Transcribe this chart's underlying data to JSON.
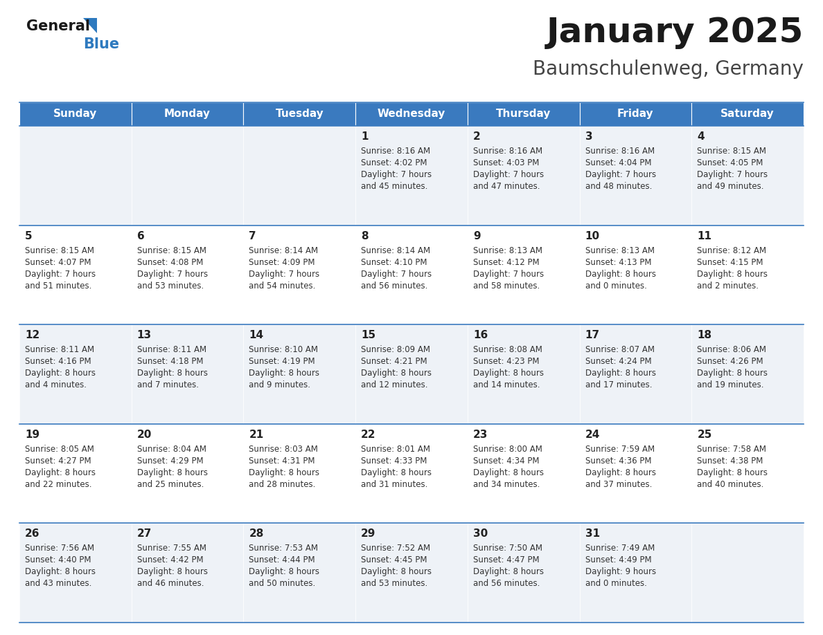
{
  "title": "January 2025",
  "subtitle": "Baumschulenweg, Germany",
  "days_of_week": [
    "Sunday",
    "Monday",
    "Tuesday",
    "Wednesday",
    "Thursday",
    "Friday",
    "Saturday"
  ],
  "header_bg": "#3a7abf",
  "header_text": "#ffffff",
  "row_bg_odd": "#eef2f7",
  "row_bg_even": "#ffffff",
  "cell_border_color": "#3a7abf",
  "title_color": "#1a1a1a",
  "subtitle_color": "#444444",
  "day_number_color": "#222222",
  "cell_text_color": "#333333",
  "logo_general_color": "#1a1a1a",
  "logo_blue_color": "#2e7abf",
  "logo_triangle_color": "#2e7abf",
  "calendar_data": [
    [
      null,
      null,
      null,
      {
        "day": 1,
        "sunrise": "8:16 AM",
        "sunset": "4:02 PM",
        "daylight": "7 hours and 45 minutes."
      },
      {
        "day": 2,
        "sunrise": "8:16 AM",
        "sunset": "4:03 PM",
        "daylight": "7 hours and 47 minutes."
      },
      {
        "day": 3,
        "sunrise": "8:16 AM",
        "sunset": "4:04 PM",
        "daylight": "7 hours and 48 minutes."
      },
      {
        "day": 4,
        "sunrise": "8:15 AM",
        "sunset": "4:05 PM",
        "daylight": "7 hours and 49 minutes."
      }
    ],
    [
      {
        "day": 5,
        "sunrise": "8:15 AM",
        "sunset": "4:07 PM",
        "daylight": "7 hours and 51 minutes."
      },
      {
        "day": 6,
        "sunrise": "8:15 AM",
        "sunset": "4:08 PM",
        "daylight": "7 hours and 53 minutes."
      },
      {
        "day": 7,
        "sunrise": "8:14 AM",
        "sunset": "4:09 PM",
        "daylight": "7 hours and 54 minutes."
      },
      {
        "day": 8,
        "sunrise": "8:14 AM",
        "sunset": "4:10 PM",
        "daylight": "7 hours and 56 minutes."
      },
      {
        "day": 9,
        "sunrise": "8:13 AM",
        "sunset": "4:12 PM",
        "daylight": "7 hours and 58 minutes."
      },
      {
        "day": 10,
        "sunrise": "8:13 AM",
        "sunset": "4:13 PM",
        "daylight": "8 hours and 0 minutes."
      },
      {
        "day": 11,
        "sunrise": "8:12 AM",
        "sunset": "4:15 PM",
        "daylight": "8 hours and 2 minutes."
      }
    ],
    [
      {
        "day": 12,
        "sunrise": "8:11 AM",
        "sunset": "4:16 PM",
        "daylight": "8 hours and 4 minutes."
      },
      {
        "day": 13,
        "sunrise": "8:11 AM",
        "sunset": "4:18 PM",
        "daylight": "8 hours and 7 minutes."
      },
      {
        "day": 14,
        "sunrise": "8:10 AM",
        "sunset": "4:19 PM",
        "daylight": "8 hours and 9 minutes."
      },
      {
        "day": 15,
        "sunrise": "8:09 AM",
        "sunset": "4:21 PM",
        "daylight": "8 hours and 12 minutes."
      },
      {
        "day": 16,
        "sunrise": "8:08 AM",
        "sunset": "4:23 PM",
        "daylight": "8 hours and 14 minutes."
      },
      {
        "day": 17,
        "sunrise": "8:07 AM",
        "sunset": "4:24 PM",
        "daylight": "8 hours and 17 minutes."
      },
      {
        "day": 18,
        "sunrise": "8:06 AM",
        "sunset": "4:26 PM",
        "daylight": "8 hours and 19 minutes."
      }
    ],
    [
      {
        "day": 19,
        "sunrise": "8:05 AM",
        "sunset": "4:27 PM",
        "daylight": "8 hours and 22 minutes."
      },
      {
        "day": 20,
        "sunrise": "8:04 AM",
        "sunset": "4:29 PM",
        "daylight": "8 hours and 25 minutes."
      },
      {
        "day": 21,
        "sunrise": "8:03 AM",
        "sunset": "4:31 PM",
        "daylight": "8 hours and 28 minutes."
      },
      {
        "day": 22,
        "sunrise": "8:01 AM",
        "sunset": "4:33 PM",
        "daylight": "8 hours and 31 minutes."
      },
      {
        "day": 23,
        "sunrise": "8:00 AM",
        "sunset": "4:34 PM",
        "daylight": "8 hours and 34 minutes."
      },
      {
        "day": 24,
        "sunrise": "7:59 AM",
        "sunset": "4:36 PM",
        "daylight": "8 hours and 37 minutes."
      },
      {
        "day": 25,
        "sunrise": "7:58 AM",
        "sunset": "4:38 PM",
        "daylight": "8 hours and 40 minutes."
      }
    ],
    [
      {
        "day": 26,
        "sunrise": "7:56 AM",
        "sunset": "4:40 PM",
        "daylight": "8 hours and 43 minutes."
      },
      {
        "day": 27,
        "sunrise": "7:55 AM",
        "sunset": "4:42 PM",
        "daylight": "8 hours and 46 minutes."
      },
      {
        "day": 28,
        "sunrise": "7:53 AM",
        "sunset": "4:44 PM",
        "daylight": "8 hours and 50 minutes."
      },
      {
        "day": 29,
        "sunrise": "7:52 AM",
        "sunset": "4:45 PM",
        "daylight": "8 hours and 53 minutes."
      },
      {
        "day": 30,
        "sunrise": "7:50 AM",
        "sunset": "4:47 PM",
        "daylight": "8 hours and 56 minutes."
      },
      {
        "day": 31,
        "sunrise": "7:49 AM",
        "sunset": "4:49 PM",
        "daylight": "9 hours and 0 minutes."
      },
      null
    ]
  ]
}
